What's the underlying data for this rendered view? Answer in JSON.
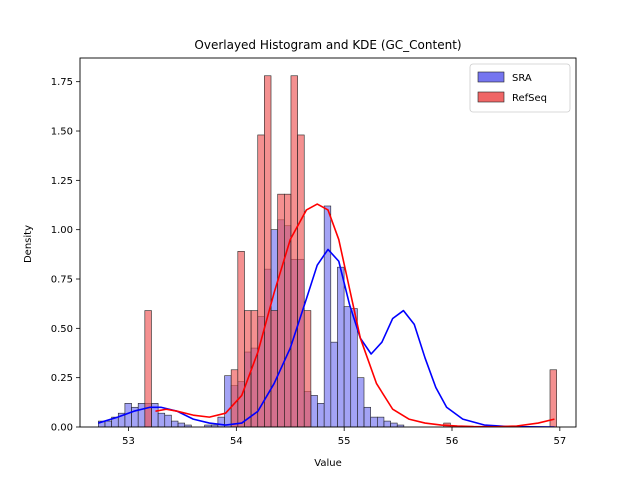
{
  "chart_data": {
    "type": "histogram",
    "title": "Overlayed Histogram and KDE (GC_Content)",
    "xlabel": "Value",
    "ylabel": "Density",
    "xlim": [
      52.55,
      57.15
    ],
    "ylim": [
      0,
      1.87
    ],
    "x_ticks": [
      53,
      54,
      55,
      56,
      57
    ],
    "y_ticks": [
      0.0,
      0.25,
      0.5,
      0.75,
      1.0,
      1.25,
      1.5,
      1.75
    ],
    "x_tick_labels": [
      "53",
      "54",
      "55",
      "56",
      "57"
    ],
    "y_tick_labels": [
      "0.00",
      "0.25",
      "0.50",
      "0.75",
      "1.00",
      "1.25",
      "1.50",
      "1.75"
    ],
    "grid": false,
    "legend_position": "top-right",
    "series": [
      {
        "name": "SRA",
        "color": "#0000ff",
        "fill": "#6666ee",
        "bin_start": 52.72,
        "bin_width": 0.0616,
        "densities": [
          0.03,
          0.03,
          0.05,
          0.07,
          0.12,
          0.1,
          0.12,
          0.12,
          0.12,
          0.07,
          0.06,
          0.03,
          0.02,
          0.01,
          0.0,
          0.0,
          0.01,
          0.01,
          0.05,
          0.26,
          0.21,
          0.23,
          0.38,
          0.4,
          0.56,
          0.8,
          1.0,
          1.05,
          1.02,
          0.85,
          0.85,
          0.18,
          0.16,
          0.12,
          1.12,
          0.43,
          0.81,
          0.61,
          0.6,
          0.25,
          0.1,
          0.05,
          0.05,
          0.03,
          0.02,
          0.01
        ]
      },
      {
        "name": "RefSeq",
        "color": "#ff0000",
        "fill": "#ee5555",
        "bin_start": 52.72,
        "bin_width": 0.0616,
        "densities": [
          0,
          0,
          0,
          0,
          0,
          0,
          0,
          0.59,
          0,
          0,
          0,
          0,
          0,
          0,
          0,
          0,
          0,
          0,
          0,
          0,
          0.29,
          0.89,
          0.59,
          0.59,
          1.48,
          1.78,
          0.59,
          1.18,
          1.18,
          1.78,
          1.48,
          0.59,
          0,
          0,
          0,
          0,
          0,
          0,
          0,
          0,
          0,
          0,
          0,
          0,
          0,
          0,
          0,
          0,
          0,
          0,
          0,
          0,
          0.02,
          0,
          0,
          0,
          0,
          0,
          0,
          0,
          0,
          0,
          0,
          0,
          0,
          0,
          0,
          0,
          0.29
        ]
      }
    ],
    "kde": [
      {
        "name": "SRA",
        "color": "#0000ff",
        "x": [
          52.72,
          52.9,
          53.05,
          53.2,
          53.3,
          53.45,
          53.6,
          53.75,
          53.9,
          54.05,
          54.2,
          54.35,
          54.5,
          54.65,
          54.75,
          54.85,
          54.95,
          55.05,
          55.15,
          55.25,
          55.35,
          55.45,
          55.55,
          55.65,
          55.75,
          55.85,
          55.95,
          56.1,
          56.3,
          56.5,
          56.7,
          56.95
        ],
        "y": [
          0.02,
          0.05,
          0.08,
          0.1,
          0.1,
          0.08,
          0.04,
          0.02,
          0.01,
          0.02,
          0.08,
          0.22,
          0.4,
          0.65,
          0.82,
          0.9,
          0.84,
          0.62,
          0.45,
          0.37,
          0.43,
          0.55,
          0.59,
          0.52,
          0.35,
          0.2,
          0.1,
          0.04,
          0.01,
          0.003,
          0.001,
          0.0
        ]
      },
      {
        "name": "RefSeq",
        "color": "#ff0000",
        "x": [
          53.25,
          53.35,
          53.45,
          53.6,
          53.75,
          53.9,
          54.05,
          54.2,
          54.35,
          54.5,
          54.65,
          54.75,
          54.85,
          54.95,
          55.05,
          55.15,
          55.3,
          55.45,
          55.6,
          55.75,
          55.9,
          56.05,
          56.2,
          56.4,
          56.6,
          56.8,
          56.95
        ],
        "y": [
          0.08,
          0.09,
          0.08,
          0.06,
          0.05,
          0.07,
          0.16,
          0.38,
          0.68,
          0.95,
          1.1,
          1.13,
          1.1,
          0.95,
          0.7,
          0.45,
          0.22,
          0.09,
          0.04,
          0.02,
          0.01,
          0.005,
          0.002,
          0.001,
          0.005,
          0.02,
          0.04
        ]
      }
    ]
  }
}
